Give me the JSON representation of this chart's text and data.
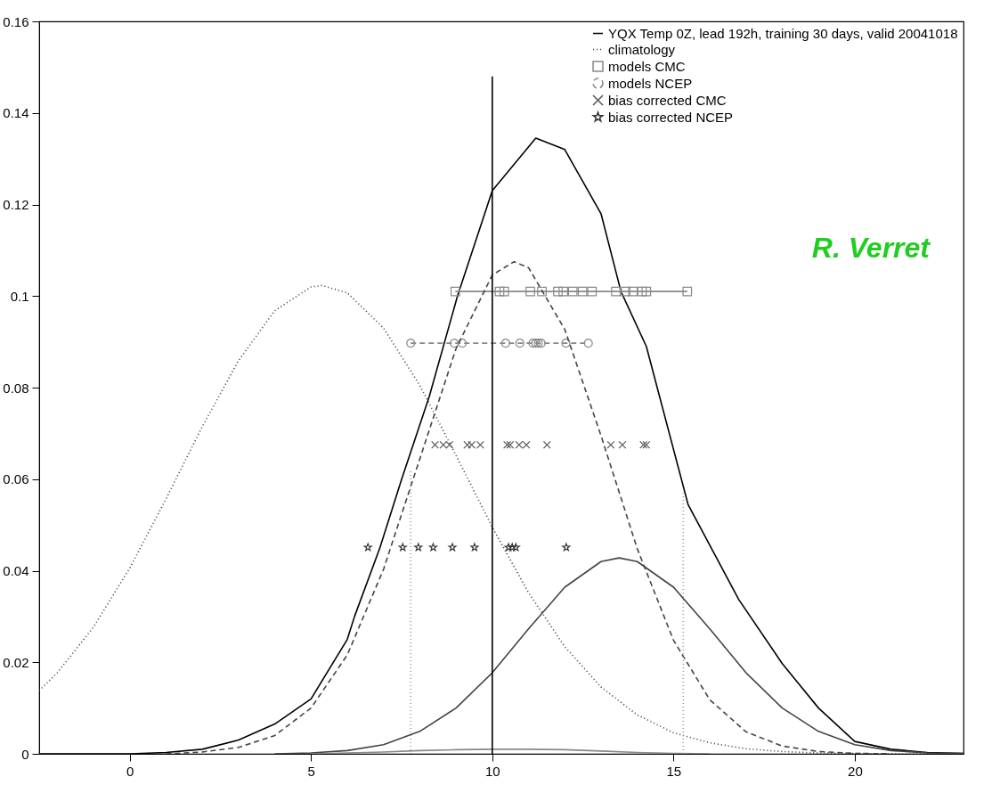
{
  "chart_data": {
    "type": "line",
    "xlim": [
      -2.5,
      23
    ],
    "ylim": [
      0,
      0.16
    ],
    "xticks": [
      0,
      5,
      10,
      15,
      20
    ],
    "yticks": [
      0,
      0.02,
      0.04,
      0.06,
      0.08,
      0.1,
      0.12,
      0.14,
      0.16
    ],
    "grid": false,
    "legend": "top right",
    "annotations": [
      "R. Verret"
    ],
    "series": [
      {
        "name": "YQX Temp 0Z, lead 192h, training 30 days, valid 20041018",
        "color": "#000000",
        "line_style": "solid",
        "marker": "none",
        "x": [
          -2.5,
          0,
          1,
          2,
          3,
          4,
          5,
          6,
          6.2,
          6.9,
          7.5,
          8.26,
          9.04,
          10,
          11.2,
          12,
          13,
          13.55,
          14.25,
          15.4,
          16.8,
          18,
          19,
          20,
          21,
          22,
          23
        ],
        "values": [
          0,
          0,
          0.0003,
          0.001,
          0.003,
          0.0065,
          0.012,
          0.025,
          0.03,
          0.045,
          0.06,
          0.078,
          0.1,
          0.123,
          0.1345,
          0.132,
          0.118,
          0.101,
          0.089,
          0.0545,
          0.0337,
          0.0197,
          0.01,
          0.0027,
          0.001,
          0.0003,
          0.0001
        ]
      },
      {
        "name": "climatology",
        "color": "#333333",
        "line_style": "dotted",
        "marker": "none",
        "x": [
          -2.5,
          -2,
          -1,
          0,
          1,
          2,
          3,
          4,
          5,
          5.3,
          6,
          7,
          8,
          9,
          10,
          11,
          12,
          13,
          14,
          15,
          16,
          17,
          18,
          19,
          20,
          21,
          22,
          23
        ],
        "values": [
          0.0138,
          0.0177,
          0.0277,
          0.0406,
          0.0557,
          0.0715,
          0.0859,
          0.0968,
          0.102,
          0.1023,
          0.1007,
          0.093,
          0.0805,
          0.0652,
          0.0495,
          0.0352,
          0.0234,
          0.0146,
          0.0085,
          0.0046,
          0.0024,
          0.0011,
          0.0005,
          0.0002,
          0.0001,
          0,
          0,
          0
        ]
      },
      {
        "name": "models CMC",
        "color": "#888888",
        "line_style": "solid",
        "marker": "square",
        "x": [
          8.98,
          10.2,
          10.33,
          11.05,
          11.37,
          11.81,
          11.96,
          12.22,
          12.49,
          12.75,
          13.41,
          13.68,
          13.88,
          14.13,
          14.25,
          15.38
        ],
        "values": [
          0.101,
          0.101,
          0.101,
          0.101,
          0.101,
          0.101,
          0.101,
          0.101,
          0.101,
          0.101,
          0.101,
          0.101,
          0.101,
          0.101,
          0.101,
          0.101
        ]
      },
      {
        "name": "models NCEP",
        "color": "#888888",
        "line_style": "dashed",
        "marker": "circle",
        "x": [
          7.75,
          8.95,
          9.17,
          10.37,
          10.76,
          11.12,
          11.2,
          11.27,
          11.35,
          12.03,
          12.65
        ],
        "values": [
          0.0897,
          0.0897,
          0.0897,
          0.0897,
          0.0897,
          0.0897,
          0.0897,
          0.0897,
          0.0897,
          0.0897,
          0.0897
        ]
      },
      {
        "name": "bias corrected CMC",
        "type": "scatter",
        "color": "#555555",
        "marker": "cross",
        "x": [
          8.42,
          8.65,
          8.82,
          9.31,
          9.43,
          9.67,
          10.41,
          10.49,
          10.74,
          10.94,
          11.51,
          13.27,
          13.59,
          14.17,
          14.25
        ],
        "values": [
          0.0675,
          0.0675,
          0.0675,
          0.0675,
          0.0675,
          0.0675,
          0.0675,
          0.0675,
          0.0675,
          0.0675,
          0.0675,
          0.0675,
          0.0675,
          0.0675,
          0.0675
        ]
      },
      {
        "name": "bias corrected NCEP",
        "type": "scatter",
        "color": "#333333",
        "marker": "star",
        "x": [
          6.57,
          7.53,
          7.96,
          8.37,
          8.9,
          9.51,
          10.45,
          10.55,
          10.65,
          12.04
        ],
        "values": [
          0.0451,
          0.0451,
          0.0451,
          0.0451,
          0.0451,
          0.0451,
          0.0451,
          0.0451,
          0.0451,
          0.0451
        ]
      },
      {
        "type": "line",
        "color": "#444444",
        "line_style": "dashed",
        "marker": "none",
        "x": [
          1,
          2,
          3,
          4,
          5,
          6,
          7,
          8,
          9,
          10,
          10.6,
          11,
          12,
          13,
          14,
          15,
          16,
          17,
          18,
          19,
          20,
          21
        ],
        "values": [
          0,
          0.0004,
          0.0014,
          0.004,
          0.01,
          0.0216,
          0.0403,
          0.0644,
          0.0885,
          0.1046,
          0.1075,
          0.1062,
          0.0927,
          0.0695,
          0.0448,
          0.0248,
          0.0118,
          0.0048,
          0.0017,
          0.0005,
          0.0001,
          0
        ]
      },
      {
        "type": "line",
        "color": "#444444",
        "line_style": "solid",
        "marker": "none",
        "x": [
          4,
          5,
          6,
          7,
          8,
          9,
          10,
          11,
          12,
          13,
          13.5,
          14,
          15,
          16,
          17,
          18,
          19,
          20,
          21,
          22,
          23
        ],
        "values": [
          0,
          0.0002,
          0.0007,
          0.002,
          0.0049,
          0.01,
          0.0177,
          0.0273,
          0.0364,
          0.042,
          0.0428,
          0.042,
          0.0364,
          0.0273,
          0.0177,
          0.01,
          0.0049,
          0.002,
          0.0007,
          0.0002,
          0.0001
        ]
      },
      {
        "type": "line",
        "color": "#888888",
        "line_style": "solid",
        "marker": "none",
        "x": [
          5,
          7,
          8,
          9,
          10,
          11,
          12,
          13,
          14,
          15,
          16
        ],
        "values": [
          0,
          0.0004,
          0.0007,
          0.0009,
          0.001,
          0.001,
          0.0009,
          0.0006,
          0.0003,
          0.0001,
          0
        ]
      },
      {
        "type": "line",
        "color": "#000000",
        "line_style": "solid",
        "marker": "none",
        "x": [
          10,
          10
        ],
        "values": [
          0,
          0.148
        ]
      },
      {
        "type": "line",
        "color": "#999999",
        "line_style": "dotted",
        "marker": "none",
        "x": [
          7.75,
          7.75
        ],
        "values": [
          0,
          0.062
        ]
      },
      {
        "type": "line",
        "color": "#999999",
        "line_style": "dotted",
        "marker": "none",
        "x": [
          15.27,
          15.27
        ],
        "values": [
          0,
          0.057
        ]
      }
    ]
  }
}
